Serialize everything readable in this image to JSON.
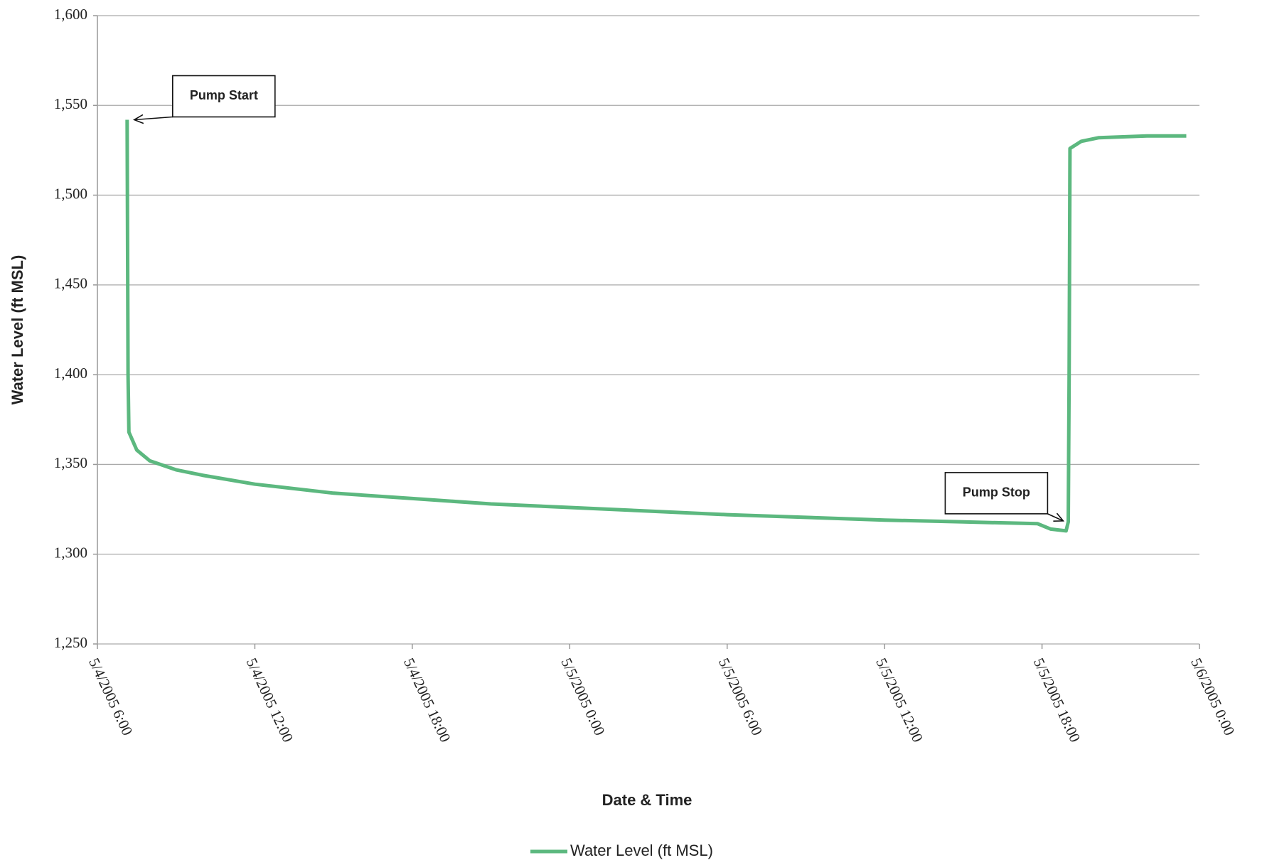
{
  "chart_data": {
    "type": "line",
    "x_label": "Date & Time",
    "y_label": "Water Level (ft MSL)",
    "x": [
      "2005-05-04T07:08",
      "2005-05-04T07:10",
      "2005-05-04T07:12",
      "2005-05-04T07:30",
      "2005-05-04T08:00",
      "2005-05-04T09:00",
      "2005-05-04T10:00",
      "2005-05-04T12:00",
      "2005-05-04T15:00",
      "2005-05-04T18:00",
      "2005-05-04T21:00",
      "2005-05-05T00:00",
      "2005-05-05T06:00",
      "2005-05-05T12:00",
      "2005-05-05T15:00",
      "2005-05-05T17:50",
      "2005-05-05T18:20",
      "2005-05-05T18:55",
      "2005-05-05T19:00",
      "2005-05-05T19:02",
      "2005-05-05T19:04",
      "2005-05-05T19:30",
      "2005-05-05T20:10",
      "2005-05-05T22:00",
      "2005-05-05T23:30"
    ],
    "series": [
      {
        "name": "Water Level (ft MSL)",
        "color": "#5cb87f",
        "values": [
          1542,
          1400,
          1368,
          1358,
          1352,
          1347,
          1344,
          1339,
          1334,
          1331,
          1328,
          1326,
          1322,
          1319,
          1318,
          1317,
          1314,
          1313,
          1318,
          1400,
          1526,
          1530,
          1532,
          1533,
          1533
        ]
      }
    ],
    "xlim": [
      "2005-05-04T06:00",
      "2005-05-06T00:00"
    ],
    "xticks": [
      {
        "value": "2005-05-04T06:00",
        "label": "5/4/2005 6:00"
      },
      {
        "value": "2005-05-04T12:00",
        "label": "5/4/2005 12:00"
      },
      {
        "value": "2005-05-04T18:00",
        "label": "5/4/2005 18:00"
      },
      {
        "value": "2005-05-05T00:00",
        "label": "5/5/2005 0:00"
      },
      {
        "value": "2005-05-05T06:00",
        "label": "5/5/2005 6:00"
      },
      {
        "value": "2005-05-05T12:00",
        "label": "5/5/2005 12:00"
      },
      {
        "value": "2005-05-05T18:00",
        "label": "5/5/2005 18:00"
      },
      {
        "value": "2005-05-06T00:00",
        "label": "5/6/2005 0:00"
      }
    ],
    "ylim": [
      1250,
      1600
    ],
    "yticks": [
      {
        "value": 1250,
        "label": "1,250"
      },
      {
        "value": 1300,
        "label": "1,300"
      },
      {
        "value": 1350,
        "label": "1,350"
      },
      {
        "value": 1400,
        "label": "1,400"
      },
      {
        "value": 1450,
        "label": "1,450"
      },
      {
        "value": 1500,
        "label": "1,500"
      },
      {
        "value": 1550,
        "label": "1,550"
      },
      {
        "value": 1600,
        "label": "1,600"
      }
    ],
    "grid": true,
    "legend": "bottom",
    "annotations": [
      {
        "text": "Pump Start",
        "x": "2005-05-04T07:08",
        "y": 1542
      },
      {
        "text": "Pump Stop",
        "x": "2005-05-05T18:55",
        "y": 1313
      }
    ]
  }
}
